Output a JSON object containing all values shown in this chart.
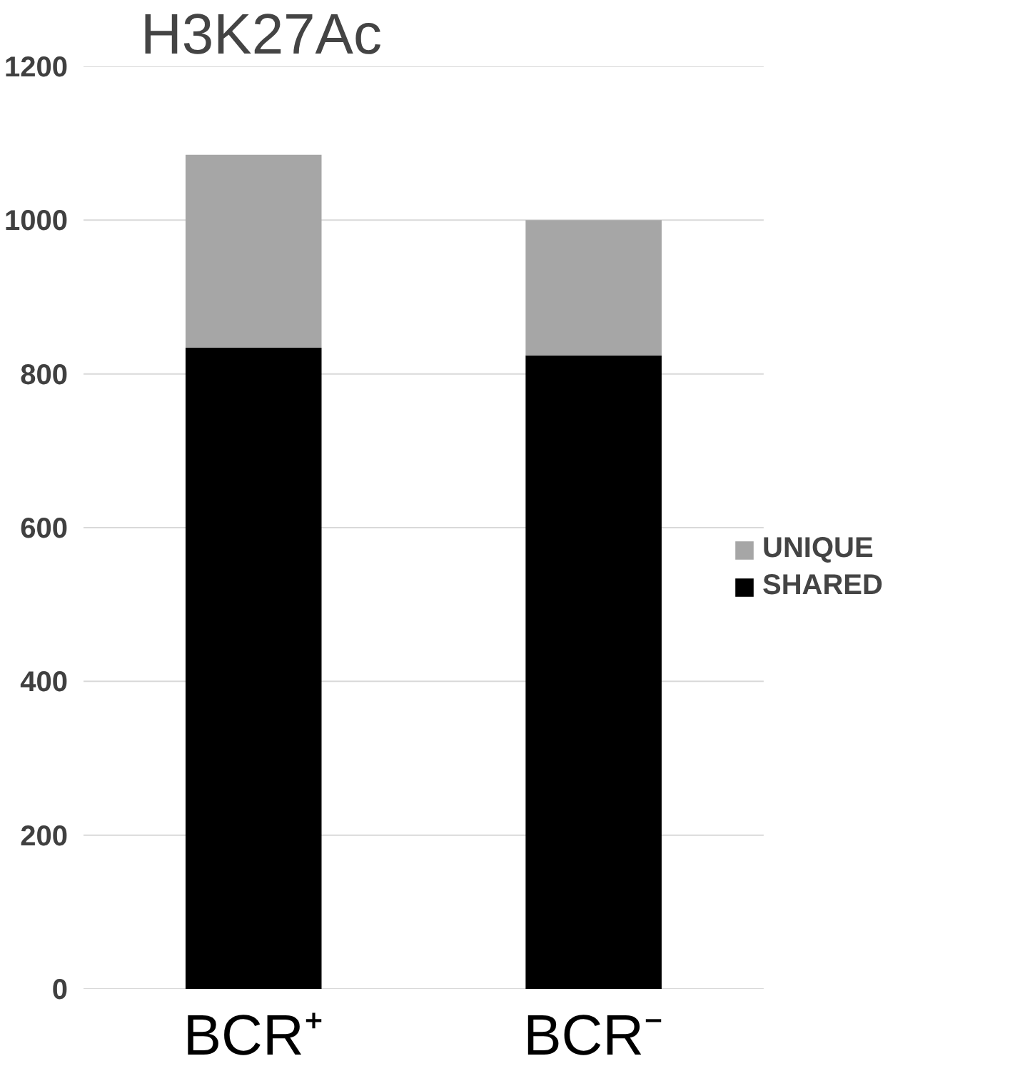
{
  "chart_data": {
    "type": "bar",
    "title": "H3K27Ac",
    "categories": [
      "BCR⁺",
      "BCR⁻"
    ],
    "stacked": true,
    "series": [
      {
        "name": "SHARED",
        "color": "#000000",
        "values": [
          834,
          824
        ]
      },
      {
        "name": "UNIQUE",
        "color": "#a6a6a6",
        "values": [
          251,
          176
        ]
      }
    ],
    "ylim": [
      0,
      1200
    ],
    "yticks": [
      0,
      200,
      400,
      600,
      800,
      1000,
      1200
    ],
    "grid": "y",
    "legend": "right"
  }
}
